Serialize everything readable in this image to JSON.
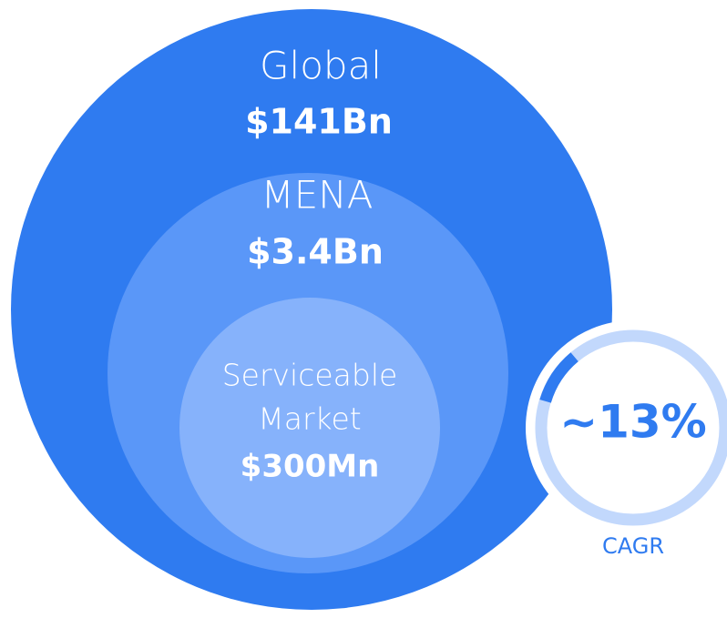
{
  "circles": [
    {
      "label": "Global",
      "value": "$141Bn"
    },
    {
      "label": "MENA",
      "value": "$3.4Bn"
    },
    {
      "label_lines": [
        "Serviceable",
        "Market"
      ],
      "value": "$300Mn"
    }
  ],
  "cagr": {
    "value": "~13%",
    "label": "CAGR"
  }
}
